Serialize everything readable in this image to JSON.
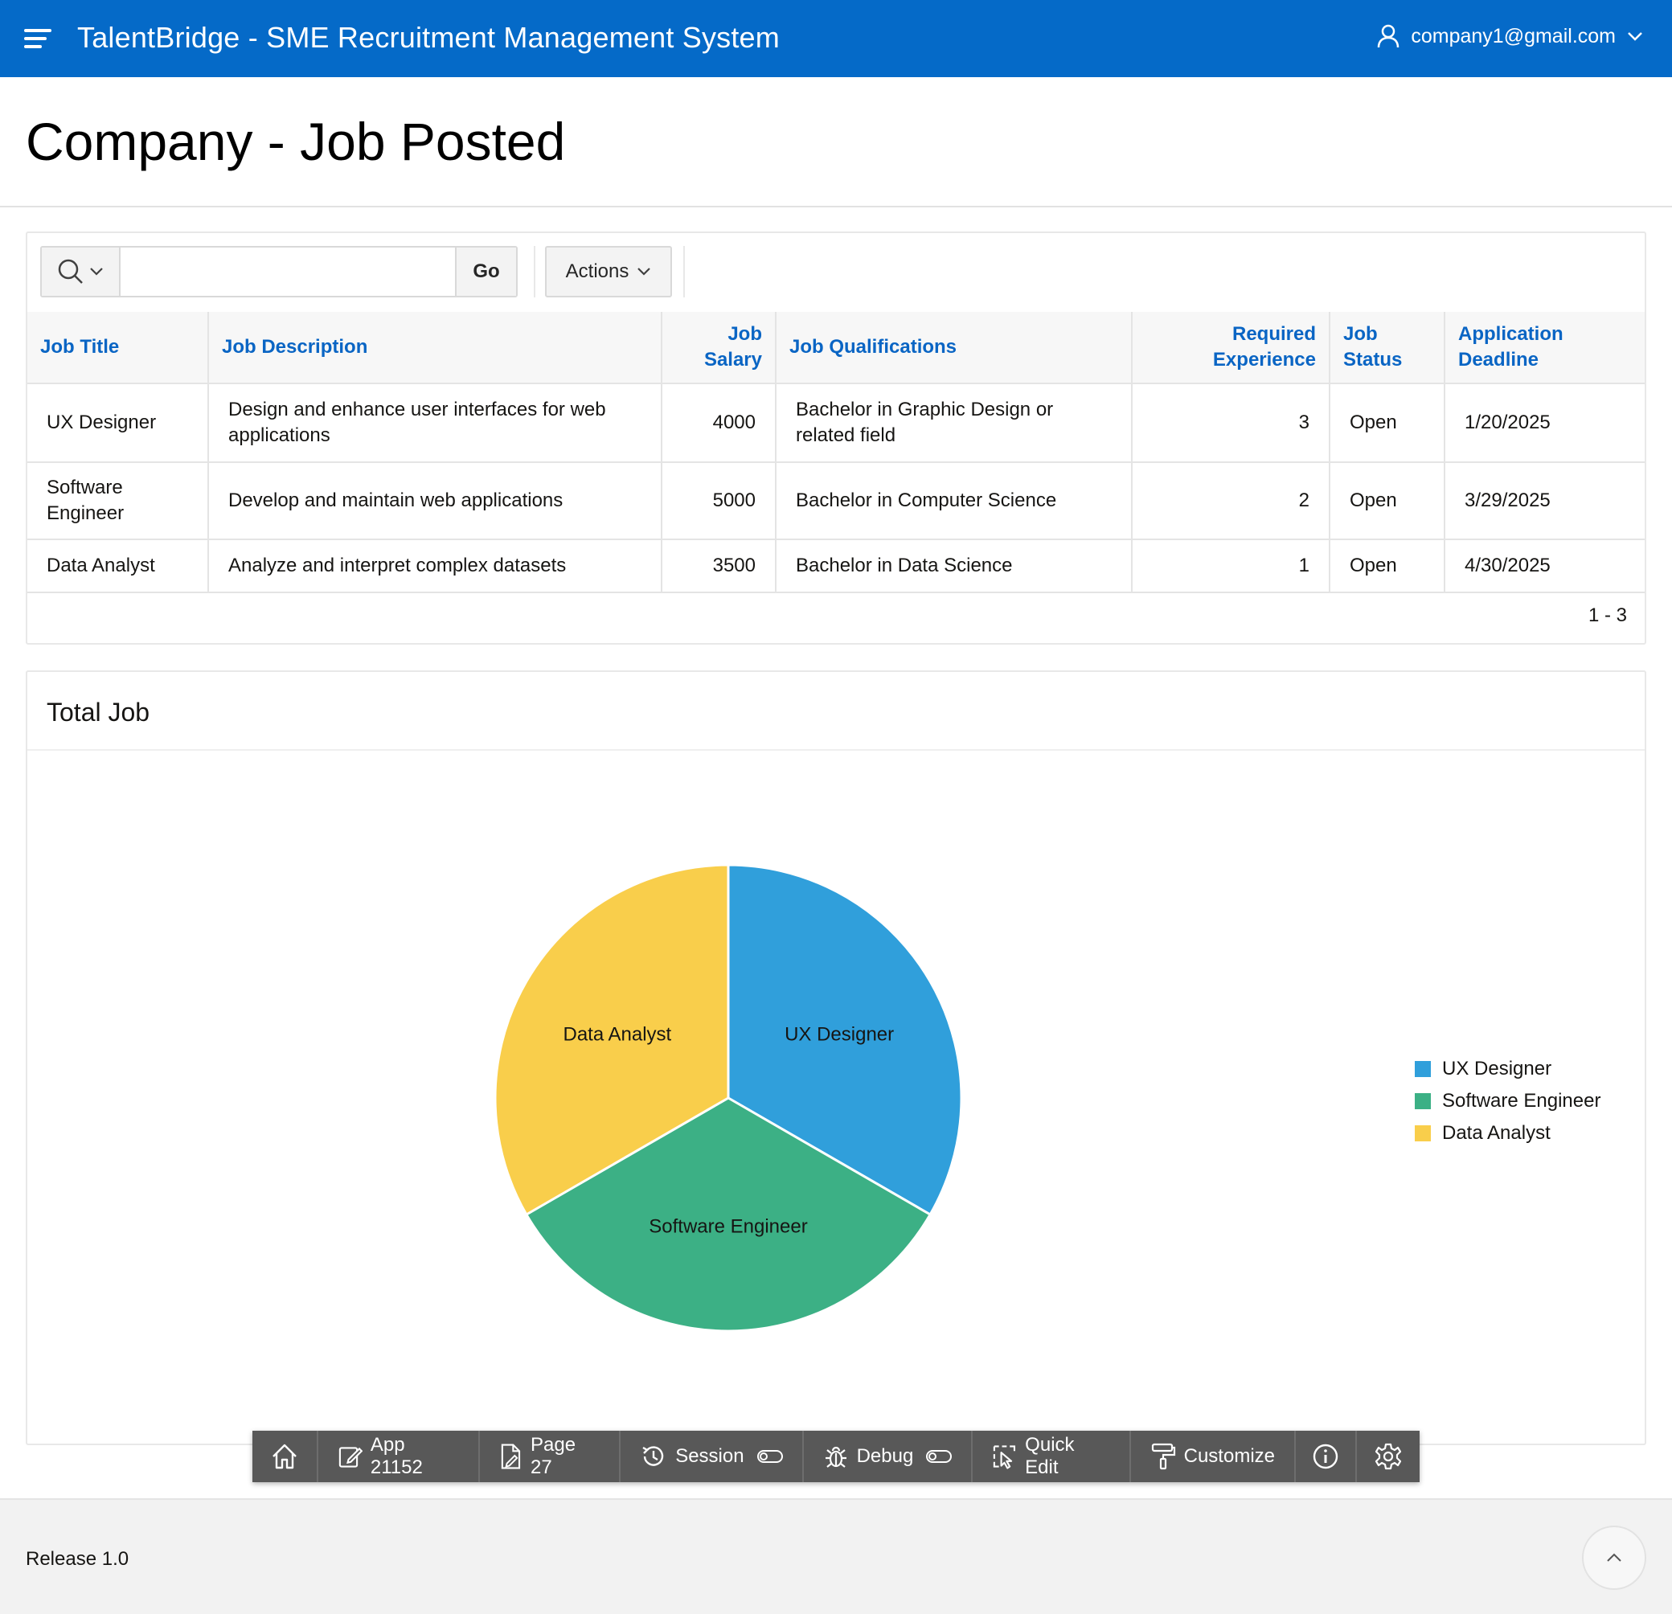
{
  "header": {
    "app_title": "TalentBridge - SME Recruitment Management System",
    "user_email": "company1@gmail.com"
  },
  "page": {
    "title": "Company - Job Posted"
  },
  "report": {
    "search": {
      "placeholder": "",
      "value": ""
    },
    "go_label": "Go",
    "actions_label": "Actions",
    "columns": [
      {
        "label_lines": [
          "Job Title"
        ],
        "align": "left"
      },
      {
        "label_lines": [
          "Job Description"
        ],
        "align": "left"
      },
      {
        "label_lines": [
          "Job",
          "Salary"
        ],
        "align": "right"
      },
      {
        "label_lines": [
          "Job Qualifications"
        ],
        "align": "left"
      },
      {
        "label_lines": [
          "Required",
          "Experience"
        ],
        "align": "right"
      },
      {
        "label_lines": [
          "Job",
          "Status"
        ],
        "align": "left"
      },
      {
        "label_lines": [
          "Application",
          "Deadline"
        ],
        "align": "left"
      }
    ],
    "rows": [
      {
        "title": "UX Designer",
        "description": "Design and enhance user interfaces for web applications",
        "salary": "4000",
        "qualifications": "Bachelor in Graphic Design or related field",
        "experience": "3",
        "status": "Open",
        "deadline": "1/20/2025"
      },
      {
        "title": "Software Engineer",
        "description": "Develop and maintain web applications",
        "salary": "5000",
        "qualifications": "Bachelor in Computer Science",
        "experience": "2",
        "status": "Open",
        "deadline": "3/29/2025"
      },
      {
        "title": "Data Analyst",
        "description": "Analyze and interpret complex datasets",
        "salary": "3500",
        "qualifications": "Bachelor in Data Science",
        "experience": "1",
        "status": "Open",
        "deadline": "4/30/2025"
      }
    ],
    "pagination": "1 - 3"
  },
  "chart_region": {
    "title": "Total Job"
  },
  "chart_data": {
    "type": "pie",
    "title": "Total Job",
    "categories": [
      "UX Designer",
      "Software Engineer",
      "Data Analyst"
    ],
    "values": [
      1,
      1,
      1
    ],
    "colors": [
      "#309fdb",
      "#3cb085",
      "#f9ce4b"
    ],
    "legend_position": "right"
  },
  "dev_toolbar": {
    "items": [
      {
        "icon": "home-icon",
        "label": ""
      },
      {
        "icon": "edit-icon",
        "label": "App 21152"
      },
      {
        "icon": "page-edit-icon",
        "label": "Page 27"
      },
      {
        "icon": "session-icon",
        "label": "Session",
        "toggle": true
      },
      {
        "icon": "bug-icon",
        "label": "Debug",
        "toggle": true
      },
      {
        "icon": "quick-edit-icon",
        "label": "Quick Edit"
      },
      {
        "icon": "paint-roller-icon",
        "label": "Customize"
      },
      {
        "icon": "info-icon",
        "label": ""
      },
      {
        "icon": "gear-icon",
        "label": ""
      }
    ]
  },
  "footer": {
    "release": "Release 1.0"
  },
  "colors": {
    "header_bg": "#056ac8",
    "link": "#0a65c4",
    "devbar_bg": "#585858"
  }
}
